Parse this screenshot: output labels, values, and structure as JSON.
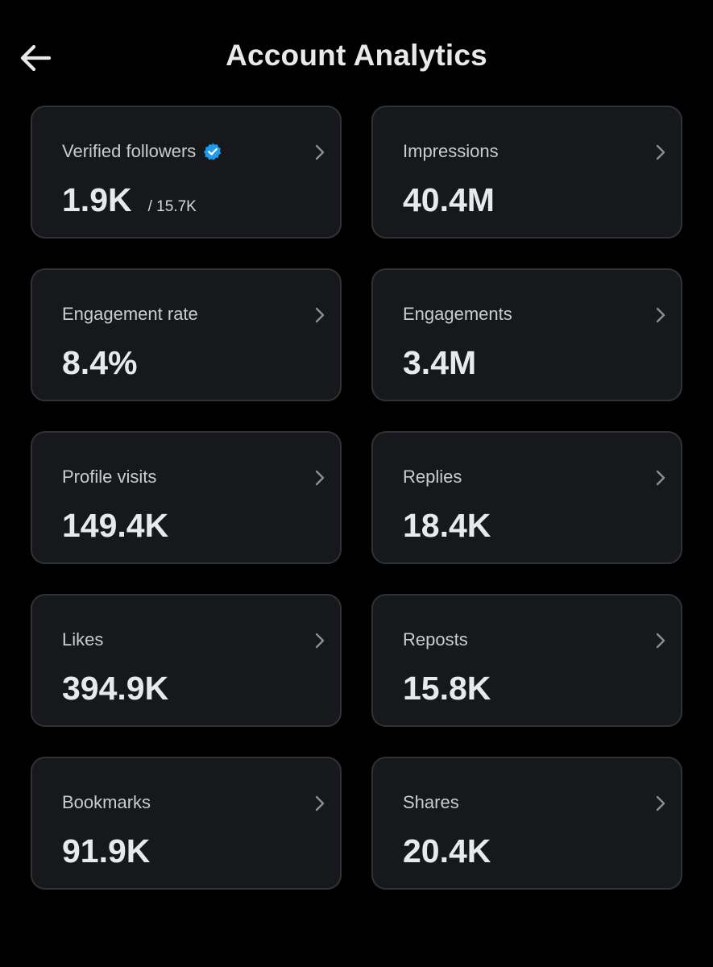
{
  "header": {
    "title": "Account Analytics",
    "back_icon": "arrow-left-icon"
  },
  "colors": {
    "background": "#000000",
    "card_background": "#16181c",
    "card_border": "#2f3336",
    "verified_badge": "#1d9bf0"
  },
  "cards": [
    {
      "label": "Verified followers",
      "value": "1.9K",
      "subvalue": "/ 15.7K",
      "badge": "verified-badge-icon"
    },
    {
      "label": "Impressions",
      "value": "40.4M"
    },
    {
      "label": "Engagement rate",
      "value": "8.4%"
    },
    {
      "label": "Engagements",
      "value": "3.4M"
    },
    {
      "label": "Profile visits",
      "value": "149.4K"
    },
    {
      "label": "Replies",
      "value": "18.4K"
    },
    {
      "label": "Likes",
      "value": "394.9K"
    },
    {
      "label": "Reposts",
      "value": "15.8K"
    },
    {
      "label": "Bookmarks",
      "value": "91.9K"
    },
    {
      "label": "Shares",
      "value": "20.4K"
    }
  ]
}
